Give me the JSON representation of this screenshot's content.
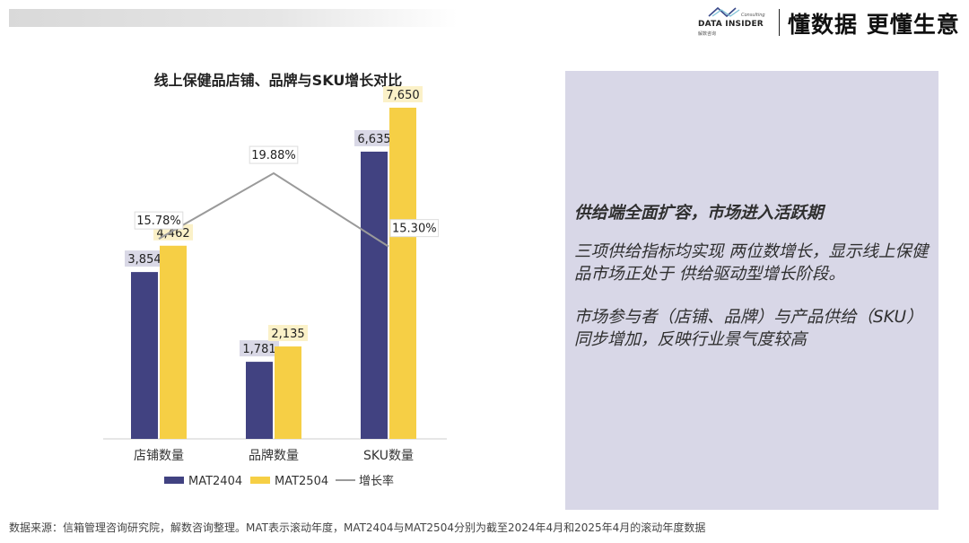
{
  "header": {
    "logo_text": "DATA INSIDER",
    "logo_sub": "解数咨询",
    "logo_consulting": "Consulting",
    "slogan": "懂数据 更懂生意"
  },
  "colors": {
    "mat2404": "#414281",
    "mat2504": "#f6cf45",
    "growth": "#9a9a9a",
    "panel": "#d8d7e7"
  },
  "chart_data": {
    "type": "bar",
    "title": "线上保健品店铺、品牌与SKU增长对比",
    "categories": [
      "店铺数量",
      "品牌数量",
      "SKU数量"
    ],
    "series": [
      {
        "name": "MAT2404",
        "values": [
          3854,
          1781,
          6635
        ],
        "labels": [
          "3,854",
          "1,781",
          "6,635"
        ]
      },
      {
        "name": "MAT2504",
        "values": [
          4462,
          2135,
          7650
        ],
        "labels": [
          "4,462",
          "2,135",
          "7,650"
        ]
      }
    ],
    "line_series": {
      "name": "增长率",
      "values": [
        15.78,
        19.88,
        15.3
      ],
      "labels": [
        "15.78%",
        "19.88%",
        "15.30%"
      ]
    },
    "ylim": [
      0,
      8500
    ],
    "grid": false,
    "legend": "bottom"
  },
  "panel": {
    "headline": "供给端全面扩容，市场进入活跃期",
    "para1": "三项供给指标均实现 两位数增长，显示线上保健品市场正处于 供给驱动型增长阶段。",
    "para2": "市场参与者（店铺、品牌）与产品供给（SKU）同步增加，反映行业景气度较高"
  },
  "footer": {
    "source": "数据来源：信箱管理咨询研究院，解数咨询整理。MAT表示滚动年度，MAT2404与MAT2504分别为截至2024年4月和2025年4月的滚动年度数据"
  }
}
